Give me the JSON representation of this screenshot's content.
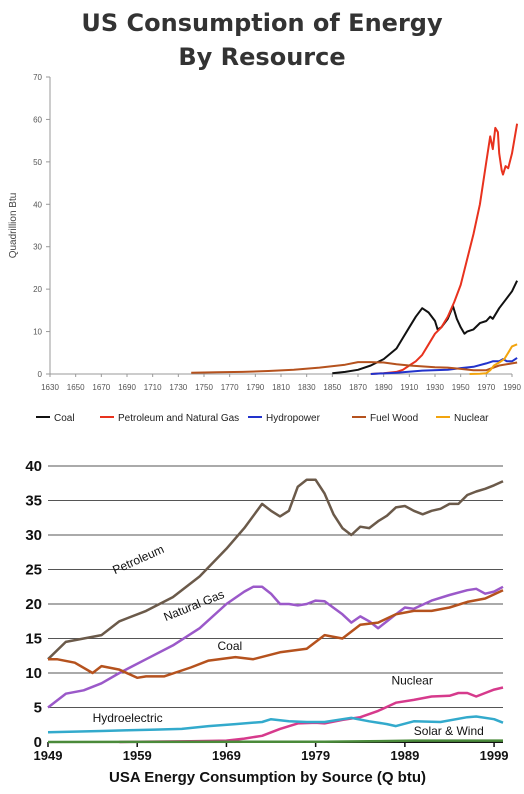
{
  "chart_data": [
    {
      "type": "line",
      "title": "US Consumption of Energy",
      "subtitle": "By Resource",
      "ylabel": "Quadrillion Btu",
      "xlim": [
        1630,
        1990
      ],
      "ylim": [
        0,
        70
      ],
      "yticks": [
        "0",
        "10",
        "20",
        "30",
        "40",
        "50",
        "60",
        "70"
      ],
      "xticks": [
        "1630",
        "1650",
        "1670",
        "1690",
        "1710",
        "1730",
        "1750",
        "1770",
        "1790",
        "1810",
        "1830",
        "1850",
        "1870",
        "1890",
        "1910",
        "1930",
        "1950",
        "1970",
        "1990"
      ],
      "legend_position": "bottom",
      "series": [
        {
          "name": "Coal",
          "color": "#111111",
          "x": [
            1850,
            1860,
            1870,
            1880,
            1890,
            1900,
            1905,
            1910,
            1915,
            1920,
            1925,
            1930,
            1932,
            1935,
            1940,
            1944,
            1947,
            1950,
            1953,
            1955,
            1960,
            1965,
            1970,
            1973,
            1975,
            1980,
            1985,
            1990,
            1994
          ],
          "y": [
            0.2,
            0.5,
            1,
            2,
            3.5,
            6,
            8.5,
            11,
            13.5,
            15.5,
            14.5,
            12.5,
            10.5,
            11,
            13,
            16,
            13,
            11,
            9.5,
            10,
            10.5,
            12,
            12.5,
            13.5,
            13,
            15.5,
            17.5,
            19.5,
            22
          ]
        },
        {
          "name": "Petroleum and Natural Gas",
          "color": "#e8321e",
          "x": [
            1880,
            1890,
            1900,
            1905,
            1910,
            1915,
            1920,
            1925,
            1930,
            1935,
            1940,
            1945,
            1950,
            1955,
            1960,
            1965,
            1970,
            1973,
            1975,
            1977,
            1979,
            1980,
            1982,
            1983,
            1985,
            1987,
            1990,
            1994
          ],
          "y": [
            0,
            0.2,
            0.5,
            1,
            2,
            3,
            4.5,
            7,
            9.5,
            11,
            13.5,
            17,
            21,
            27,
            33,
            40,
            50,
            56,
            53,
            58,
            57,
            52,
            48,
            47,
            49,
            48.5,
            52,
            59
          ]
        },
        {
          "name": "Hydropower",
          "color": "#2233cc",
          "x": [
            1880,
            1900,
            1920,
            1940,
            1950,
            1960,
            1970,
            1975,
            1980,
            1983,
            1986,
            1990,
            1994
          ],
          "y": [
            0,
            0.3,
            0.8,
            1,
            1.4,
            1.7,
            2.5,
            3,
            3,
            3.5,
            3,
            3,
            3.8
          ]
        },
        {
          "name": "Fuel Wood",
          "color": "#b5521e",
          "x": [
            1740,
            1760,
            1780,
            1800,
            1820,
            1840,
            1860,
            1870,
            1880,
            1890,
            1900,
            1910,
            1920,
            1930,
            1940,
            1950,
            1960,
            1970,
            1980,
            1990,
            1994
          ],
          "y": [
            0.3,
            0.4,
            0.5,
            0.7,
            1,
            1.5,
            2.2,
            2.8,
            2.8,
            2.7,
            2.3,
            2,
            1.8,
            1.6,
            1.5,
            1.2,
            0.9,
            0.9,
            2,
            2.5,
            2.7
          ]
        },
        {
          "name": "Nuclear",
          "color": "#f2a40e",
          "x": [
            1957,
            1965,
            1970,
            1973,
            1976,
            1980,
            1984,
            1987,
            1990,
            1994
          ],
          "y": [
            0,
            0.05,
            0.2,
            0.9,
            2,
            2.7,
            3.5,
            5,
            6.5,
            7
          ]
        }
      ]
    },
    {
      "type": "line",
      "title": "USA Energy Consumption by Source (Q btu)",
      "xlim": [
        1949,
        2000
      ],
      "ylim": [
        0,
        40
      ],
      "yticks": [
        "0",
        "5",
        "10",
        "15",
        "20",
        "25",
        "30",
        "35",
        "40"
      ],
      "xticks": [
        "1949",
        "1959",
        "1969",
        "1979",
        "1989",
        "1999"
      ],
      "grid": true,
      "series": [
        {
          "name": "Petroleum",
          "color": "#6b5a4a",
          "x": [
            1949,
            1951,
            1953,
            1955,
            1957,
            1960,
            1963,
            1966,
            1969,
            1971,
            1973,
            1974,
            1975,
            1976,
            1977,
            1978,
            1979,
            1980,
            1981,
            1982,
            1983,
            1984,
            1985,
            1986,
            1987,
            1988,
            1989,
            1990,
            1991,
            1992,
            1993,
            1994,
            1995,
            1996,
            1997,
            1998,
            1999,
            2000
          ],
          "y": [
            12,
            14.5,
            15,
            15.5,
            17.5,
            19,
            21,
            24,
            28,
            31,
            34.5,
            33.5,
            32.7,
            33.5,
            37,
            38,
            38,
            36,
            33,
            31,
            30,
            31.2,
            31,
            32,
            32.8,
            34,
            34.2,
            33.5,
            33,
            33.5,
            33.8,
            34.5,
            34.5,
            35.8,
            36.3,
            36.7,
            37.2,
            37.8
          ]
        },
        {
          "name": "Natural Gas",
          "color": "#9b59c9",
          "x": [
            1949,
            1951,
            1953,
            1955,
            1957,
            1960,
            1963,
            1966,
            1969,
            1971,
            1972,
            1973,
            1974,
            1975,
            1976,
            1977,
            1978,
            1979,
            1980,
            1982,
            1983,
            1984,
            1985,
            1986,
            1987,
            1988,
            1989,
            1990,
            1992,
            1994,
            1996,
            1997,
            1998,
            1999,
            2000
          ],
          "y": [
            5,
            7,
            7.5,
            8.5,
            10,
            12,
            14,
            16.5,
            20,
            21.8,
            22.5,
            22.5,
            21.5,
            20,
            20,
            19.8,
            20,
            20.5,
            20.4,
            18.5,
            17.3,
            18.2,
            17.5,
            16.5,
            17.5,
            18.5,
            19.5,
            19.3,
            20.5,
            21.3,
            22,
            22.2,
            21.5,
            21.8,
            22.5
          ]
        },
        {
          "name": "Coal",
          "color": "#b5521e",
          "x": [
            1949,
            1950,
            1952,
            1954,
            1955,
            1957,
            1959,
            1960,
            1962,
            1965,
            1967,
            1970,
            1972,
            1975,
            1978,
            1980,
            1982,
            1984,
            1986,
            1988,
            1990,
            1992,
            1994,
            1996,
            1998,
            2000
          ],
          "y": [
            12,
            12,
            11.5,
            10,
            11,
            10.5,
            9.3,
            9.5,
            9.5,
            10.8,
            11.8,
            12.3,
            12,
            13,
            13.5,
            15.5,
            15,
            17,
            17.3,
            18.5,
            19,
            19,
            19.5,
            20.3,
            20.8,
            22
          ]
        },
        {
          "name": "Nuclear",
          "color": "#d63a8c",
          "x": [
            1957,
            1965,
            1969,
            1971,
            1973,
            1975,
            1977,
            1979,
            1980,
            1982,
            1984,
            1986,
            1988,
            1990,
            1992,
            1994,
            1995,
            1996,
            1997,
            1998,
            1999,
            2000
          ],
          "y": [
            0,
            0.1,
            0.2,
            0.5,
            0.9,
            1.9,
            2.7,
            2.8,
            2.7,
            3.2,
            3.6,
            4.5,
            5.7,
            6.1,
            6.6,
            6.7,
            7.1,
            7.1,
            6.6,
            7.1,
            7.6,
            7.9
          ]
        },
        {
          "name": "Hydroelectric",
          "color": "#33aacc",
          "x": [
            1949,
            1952,
            1955,
            1958,
            1961,
            1964,
            1967,
            1970,
            1973,
            1974,
            1976,
            1978,
            1980,
            1982,
            1983,
            1985,
            1987,
            1988,
            1990,
            1993,
            1996,
            1997,
            1999,
            2000
          ],
          "y": [
            1.4,
            1.5,
            1.6,
            1.7,
            1.8,
            1.9,
            2.3,
            2.6,
            2.9,
            3.3,
            3.0,
            2.9,
            2.9,
            3.3,
            3.5,
            3.0,
            2.6,
            2.3,
            3.0,
            2.9,
            3.6,
            3.7,
            3.3,
            2.8
          ]
        },
        {
          "name": "Solar & Wind",
          "color": "#4a8a3a",
          "x": [
            1949,
            1980,
            1985,
            1990,
            1995,
            2000
          ],
          "y": [
            0,
            0.05,
            0.1,
            0.2,
            0.2,
            0.2
          ]
        }
      ]
    }
  ]
}
